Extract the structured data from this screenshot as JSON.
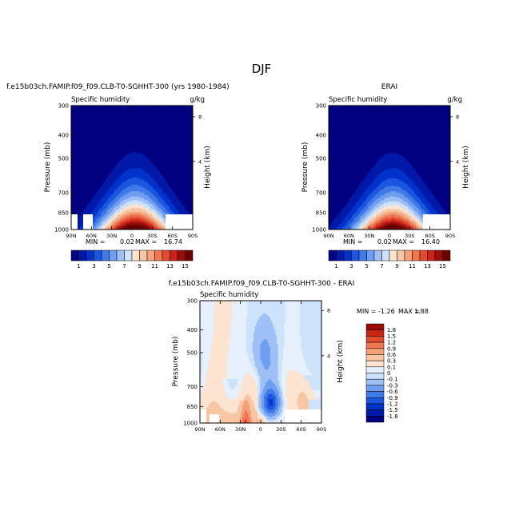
{
  "figure": {
    "title": "DJF",
    "colorbar_ticks": [
      "1",
      "3",
      "5",
      "7",
      "9",
      "11",
      "13",
      "15"
    ],
    "diff_colorbar_ticks": [
      "1.8",
      "1.5",
      "1.2",
      "0.9",
      "0.6",
      "0.3",
      "0.1",
      "0",
      "-0.1",
      "-0.3",
      "-0.6",
      "-0.9",
      "-1.2",
      "-1.5",
      "-1.8"
    ]
  },
  "panels": [
    {
      "title": "f.e15b03ch.FAMIP.f09_f09.CLB-T0-SGHHT-300 (yrs 1980-1984)",
      "left_label": "Specific humidity",
      "right_label": "g/kg",
      "ylabel": "Pressure (mb)",
      "y2label": "Height (km)",
      "stats": {
        "min_label": "MIN =",
        "min_value": "0.02",
        "max_label": "MAX =",
        "max_value": "16.74"
      }
    },
    {
      "title": "ERAI",
      "left_label": "Specific humidity",
      "right_label": "g/kg",
      "ylabel": "Pressure (mb)",
      "y2label": "Height (km)",
      "stats": {
        "min_label": "MIN =",
        "min_value": "0.02",
        "max_label": "MAX =",
        "max_value": "16.40"
      }
    },
    {
      "title": "f.e15b03ch.FAMIP.f09_f09.CLB-T0-SGHHT-300 - ERAI",
      "left_label": "Specific humidity",
      "right_label": "",
      "ylabel": "Pressure (mb)",
      "y2label": "Height (km)",
      "stats": {
        "min_label": "MIN =",
        "min_value": "-1.26",
        "max_label": "MAX =",
        "max_value": "1.88"
      }
    }
  ],
  "chart_data": [
    {
      "type": "heatmap",
      "title": "f.e15b03ch.FAMIP.f09_f09.CLB-T0-SGHHT-300 (yrs 1980-1984)",
      "xlabel": "",
      "ylabel": "Pressure (mb)",
      "y2label": "Height (km)",
      "units": "g/kg",
      "x_ticks": [
        "90N",
        "60N",
        "30N",
        "0",
        "30S",
        "60S",
        "90S"
      ],
      "y_ticks": [
        "300",
        "400",
        "500",
        "700",
        "850",
        "1000"
      ],
      "y2_ticks": [
        "8",
        "4"
      ],
      "contour_levels": [
        1,
        2,
        3,
        4,
        5,
        6,
        7,
        8,
        9,
        10,
        11,
        12,
        13,
        14,
        15
      ],
      "min": 0.02,
      "max": 16.74,
      "peak_latitude": -5
    },
    {
      "type": "heatmap",
      "title": "ERAI",
      "xlabel": "",
      "ylabel": "Pressure (mb)",
      "y2label": "Height (km)",
      "units": "g/kg",
      "x_ticks": [
        "90N",
        "60N",
        "30N",
        "0",
        "30S",
        "60S",
        "90S"
      ],
      "y_ticks": [
        "300",
        "400",
        "500",
        "700",
        "850",
        "1000"
      ],
      "y2_ticks": [
        "8",
        "4"
      ],
      "contour_levels": [
        1,
        2,
        3,
        4,
        5,
        6,
        7,
        8,
        9,
        10,
        11,
        12,
        13,
        14,
        15
      ],
      "min": 0.02,
      "max": 16.4,
      "peak_latitude": -5
    },
    {
      "type": "heatmap",
      "title": "f.e15b03ch.FAMIP.f09_f09.CLB-T0-SGHHT-300 - ERAI",
      "xlabel": "",
      "ylabel": "Pressure (mb)",
      "y2label": "Height (km)",
      "units": "g/kg",
      "x_ticks": [
        "90N",
        "60N",
        "30N",
        "0",
        "30S",
        "60S",
        "90S"
      ],
      "y_ticks": [
        "300",
        "400",
        "500",
        "700",
        "850",
        "1000"
      ],
      "y2_ticks": [
        "8",
        "4"
      ],
      "contour_levels": [
        -1.8,
        -1.5,
        -1.2,
        -0.9,
        -0.6,
        -0.3,
        -0.1,
        0,
        0.1,
        0.3,
        0.6,
        0.9,
        1.2,
        1.5,
        1.8
      ],
      "min": -1.26,
      "max": 1.88
    }
  ]
}
